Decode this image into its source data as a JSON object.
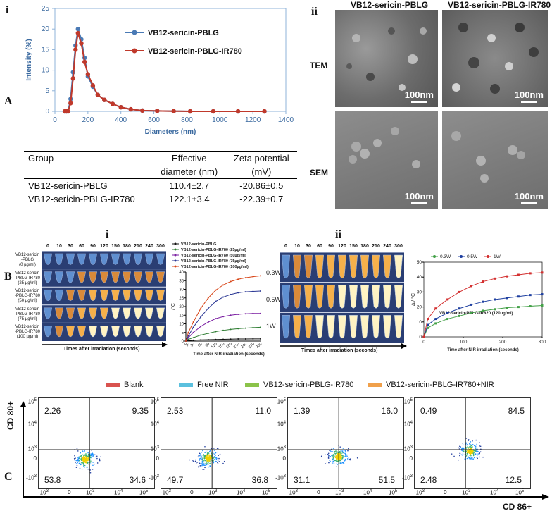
{
  "panel_labels": {
    "A": "A",
    "B": "B",
    "C": "C"
  },
  "sub_labels": {
    "a_i": "i",
    "a_ii": "ii",
    "b_i": "i",
    "b_ii": "ii"
  },
  "panel_a_chart": {
    "chart_data": {
      "type": "line",
      "title": "",
      "xlabel": "Diameters (nm)",
      "ylabel": "Intensity (%)",
      "xlim": [
        0,
        1400
      ],
      "ylim": [
        0,
        25
      ],
      "xticks": [
        "0",
        "200",
        "400",
        "600",
        "800",
        "1000",
        "1200",
        "1400"
      ],
      "yticks": [
        "0",
        "5",
        "10",
        "15",
        "20",
        "25"
      ],
      "series": [
        {
          "name": "VB12-sericin-PBLG",
          "color": "#4a7ab5",
          "x": [
            60,
            70,
            80,
            95,
            110,
            125,
            140,
            160,
            180,
            200,
            230,
            260,
            300,
            350,
            400,
            460,
            530,
            620,
            720,
            820,
            960,
            1110,
            1270
          ],
          "y": [
            0,
            0,
            0,
            3,
            9.5,
            16,
            20,
            17.5,
            13,
            8.5,
            6,
            4,
            2.8,
            1.8,
            1,
            0.5,
            0.2,
            0.1,
            0.05,
            0,
            0,
            0,
            0
          ]
        },
        {
          "name": "VB12-sericin-PBLG-IR780",
          "color": "#c0392b",
          "x": [
            60,
            70,
            80,
            95,
            110,
            125,
            140,
            160,
            180,
            200,
            230,
            260,
            300,
            350,
            400,
            460,
            530,
            620,
            720,
            820,
            960,
            1110,
            1270
          ],
          "y": [
            0,
            0,
            0,
            2,
            8,
            15,
            19,
            16.5,
            12,
            9,
            6.3,
            4,
            2.8,
            1.8,
            1,
            0.5,
            0.2,
            0.1,
            0.05,
            0,
            0,
            0,
            0
          ]
        }
      ]
    }
  },
  "panel_a_table": {
    "header": [
      "Group",
      "Effective",
      "Zeta potential"
    ],
    "header2": [
      "",
      "diameter (nm)",
      "(mV)"
    ],
    "rows": [
      [
        "VB12-sericin-PBLG",
        "110.4±2.7",
        "-20.86±0.5"
      ],
      [
        "VB12-sericin-PBLG-IR780",
        "122.1±3.4",
        "-22.39±0.7"
      ]
    ]
  },
  "panel_a_images": {
    "col1": "VB12-sericin-PBLG",
    "col2": "VB12-sericin-PBLG-IR780",
    "row1": "TEM",
    "row2": "SEM",
    "scale": "100nm"
  },
  "panel_b_i_tubes": {
    "times": [
      "0",
      "10",
      "30",
      "60",
      "90",
      "120",
      "150",
      "180",
      "210",
      "240",
      "300"
    ],
    "row_labels": [
      [
        "VB12-sericin",
        "-PBLG",
        "(0 µg/ml)"
      ],
      [
        "VB12-sericin",
        "-PBLG-IR780",
        "(25 µg/ml)"
      ],
      [
        "VB12-sericin",
        "-PBLG-IR780",
        "(50 µg/ml)"
      ],
      [
        "VB12-sericin",
        "-PBLG-IR780",
        "(75 µg/ml)"
      ],
      [
        "VB12-sericin",
        "-PBLG-IR780",
        "(100 µg/ml)"
      ]
    ],
    "axis_label": "Times after irradiation (seconds)"
  },
  "panel_b_i_chart": {
    "chart_data": {
      "type": "line",
      "xlabel": "Time after NIR irradiation (seconds)",
      "ylabel": "/°C",
      "xlim": [
        0,
        300
      ],
      "ylim": [
        0,
        40
      ],
      "yticks": [
        "0",
        "5",
        "10",
        "15",
        "20",
        "25",
        "30",
        "35",
        "40"
      ],
      "xticks": [
        "0",
        "10",
        "30",
        "60",
        "90",
        "120",
        "150",
        "180",
        "210",
        "240",
        "270",
        "300"
      ],
      "series": [
        {
          "name": "VB12-sericin-PBLG",
          "color": "#111111",
          "x": [
            0,
            10,
            30,
            60,
            90,
            120,
            150,
            180,
            210,
            240,
            270,
            300
          ],
          "y": [
            0,
            0.3,
            0.5,
            0.7,
            0.8,
            0.9,
            1,
            1.1,
            1.2,
            1.2,
            1.3,
            1.3
          ]
        },
        {
          "name": "VB12-sericin-PBLG-IR780 (25µg/ml)",
          "color": "#2e7d32",
          "x": [
            0,
            10,
            30,
            60,
            90,
            120,
            150,
            180,
            210,
            240,
            270,
            300
          ],
          "y": [
            0,
            1,
            2,
            3.5,
            4.5,
            5.5,
            6.2,
            6.8,
            7.2,
            7.5,
            7.8,
            8
          ]
        },
        {
          "name": "VB12-sericin-PBLG-IR780 (50µg/ml)",
          "color": "#7b1fa2",
          "x": [
            0,
            10,
            30,
            60,
            90,
            120,
            150,
            180,
            210,
            240,
            270,
            300
          ],
          "y": [
            0,
            2,
            5,
            8.5,
            11,
            13,
            14.2,
            15,
            15.5,
            15.8,
            16,
            16
          ]
        },
        {
          "name": "VB12-sericin-PBLG-IR780 (75µg/ml)",
          "color": "#283593",
          "x": [
            0,
            10,
            30,
            60,
            90,
            120,
            150,
            180,
            210,
            240,
            270,
            300
          ],
          "y": [
            0,
            3,
            8,
            14,
            19,
            23,
            25.5,
            27,
            28,
            28.5,
            28.8,
            29
          ]
        },
        {
          "name": "VB12-sericin-PBLG-IR780 (100µg/ml)",
          "color": "#d84315",
          "x": [
            0,
            10,
            30,
            60,
            90,
            120,
            150,
            180,
            210,
            240,
            270,
            300
          ],
          "y": [
            0,
            5,
            11,
            19,
            25,
            29.5,
            32.5,
            34.5,
            35.8,
            36.7,
            37.3,
            37.8
          ]
        }
      ],
      "annotations": [
        "0.3W",
        "0.5W",
        "1W"
      ]
    }
  },
  "panel_b_ii_tubes": {
    "times": [
      "0",
      "10",
      "30",
      "60",
      "90",
      "120",
      "150",
      "180",
      "210",
      "240",
      "300"
    ],
    "row_labels": [
      "0.3W",
      "0.5W",
      "1W"
    ],
    "axis_label": "Times after irradiation (seconds)"
  },
  "panel_b_ii_chart": {
    "chart_data": {
      "type": "line",
      "xlabel": "Time after NIR irradiation (seconds)",
      "ylabel": "Δ / °C",
      "xlim": [
        0,
        300
      ],
      "ylim": [
        0,
        50
      ],
      "xticks": [
        "0",
        "100",
        "200",
        "300"
      ],
      "yticks": [
        "0",
        "10",
        "20",
        "30",
        "40",
        "50"
      ],
      "annotation": "VB12-sericin-PBLG-IR820 (120µg/ml)",
      "series": [
        {
          "name": "0.3W",
          "color": "#43a047",
          "x": [
            0,
            10,
            30,
            60,
            90,
            120,
            150,
            180,
            210,
            240,
            270,
            300
          ],
          "y": [
            0,
            6,
            9,
            12,
            14,
            16,
            17.5,
            18.5,
            19.5,
            20,
            20.5,
            21
          ]
        },
        {
          "name": "0.5W",
          "color": "#1e3fa0",
          "x": [
            0,
            10,
            30,
            60,
            90,
            120,
            150,
            180,
            210,
            240,
            270,
            300
          ],
          "y": [
            0,
            8,
            12,
            16,
            19,
            21.5,
            23.5,
            25,
            26,
            27,
            28,
            28.5
          ]
        },
        {
          "name": "1W",
          "color": "#d32f2f",
          "x": [
            0,
            10,
            30,
            60,
            90,
            120,
            150,
            180,
            210,
            240,
            270,
            300
          ],
          "y": [
            0,
            12,
            19,
            25,
            30,
            34,
            37,
            39,
            40.5,
            41.5,
            42.5,
            43
          ]
        }
      ]
    }
  },
  "panel_c_legend": [
    {
      "label": "Blank",
      "color": "#d9534f"
    },
    {
      "label": "Free NIR",
      "color": "#5bc0de"
    },
    {
      "label": "VB12-sericin-PBLG-IR780",
      "color": "#8bc34a"
    },
    {
      "label": "VB12-sericin-PBLG-IR780+NIR",
      "color": "#f0a04b"
    }
  ],
  "panel_c_axes": {
    "y": "CD 80+",
    "x": "CD 86+"
  },
  "panel_c_ticks": {
    "y": [
      "10^5",
      "10^4",
      "10^3",
      "0",
      "-10^3"
    ],
    "x": [
      "-10^3",
      "0",
      "10^3",
      "10^4",
      "10^5"
    ]
  },
  "panel_c_plots": [
    {
      "ul": "2.26",
      "ur": "9.35",
      "ll": "53.8",
      "lr": "34.6"
    },
    {
      "ul": "2.53",
      "ur": "11.0",
      "ll": "49.7",
      "lr": "36.8"
    },
    {
      "ul": "1.39",
      "ur": "16.0",
      "ll": "31.1",
      "lr": "51.5"
    },
    {
      "ul": "0.49",
      "ur": "84.5",
      "ll": "2.48",
      "lr": "12.5"
    }
  ]
}
